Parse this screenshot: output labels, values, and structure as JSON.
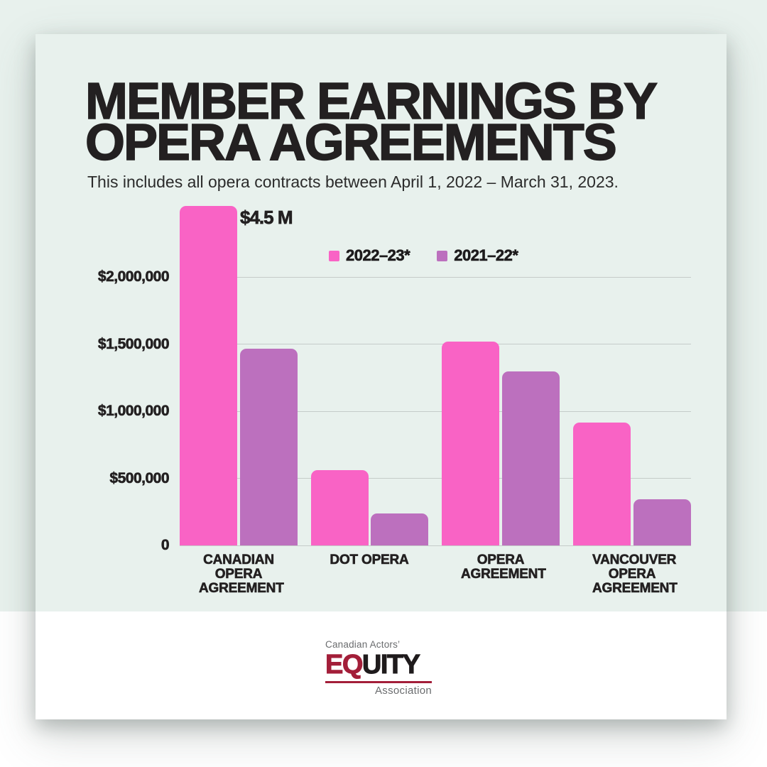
{
  "poster": {
    "title": "MEMBER EARNINGS BY OPERA AGREEMENTS",
    "subtitle": "This includes all opera contracts between April 1, 2022 – March 31, 2023."
  },
  "chart_data": {
    "type": "bar",
    "title": "Member earnings by opera agreements",
    "categories": [
      "CANADIAN OPERA AGREEMENT",
      "DOT OPERA",
      "OPERA AGREEMENT",
      "VANCOUVER OPERA AGREEMENT"
    ],
    "series": [
      {
        "name": "2022–23*",
        "color": "#F963C5",
        "values": [
          4500000,
          560000,
          1520000,
          915000
        ]
      },
      {
        "name": "2021–22*",
        "color": "#BC70BE",
        "values": [
          1465000,
          240000,
          1295000,
          345000
        ]
      }
    ],
    "yticks": [
      {
        "label": "$2,000,000",
        "value": 2000000
      },
      {
        "label": "$1,500,000",
        "value": 1500000
      },
      {
        "label": "$1,000,000",
        "value": 1000000
      },
      {
        "label": "$500,000",
        "value": 500000
      },
      {
        "label": "0",
        "value": 0
      }
    ],
    "ylim": [
      0,
      2530000
    ],
    "grid": true,
    "legend_position": "top",
    "annotations": [
      {
        "series": "2022–23*",
        "category": "CANADIAN OPERA AGREEMENT",
        "label": "$4.5 M",
        "note": "bar exceeds the axis top and is clipped"
      }
    ]
  },
  "logo": {
    "pretext": "Canadian Actors’",
    "wordmark_accent": "EQ",
    "wordmark_rest": "UITY",
    "posttext": "Association",
    "accent_color": "#A31E39"
  },
  "colors": {
    "background_mint": "#E8F1ED",
    "card_white": "#FFFFFF",
    "gridline": "#C5CCC9",
    "text_dark": "#232021",
    "series_pink": "#F963C5",
    "series_purple": "#BC70BE",
    "logo_crimson": "#A31E39",
    "logo_gray": "#6A6C6E"
  }
}
